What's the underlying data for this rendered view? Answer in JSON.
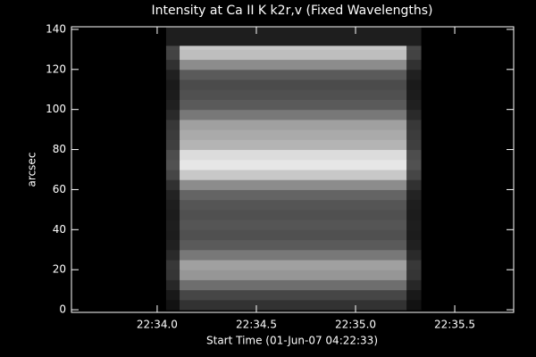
{
  "chart_data": {
    "type": "heatmap",
    "title": "Intensity at Ca II K k2r,v (Fixed Wavelengths)",
    "xlabel": "Start Time (01-Jun-07 04:22:33)",
    "ylabel": "arcsec",
    "xlim": [
      33.568,
      35.797
    ],
    "ylim": [
      -1.3,
      141.3
    ],
    "xticks": [
      {
        "value": 34.0,
        "label": "22:34.0"
      },
      {
        "value": 34.5,
        "label": "22:34.5"
      },
      {
        "value": 35.0,
        "label": "22:35.0"
      },
      {
        "value": 35.5,
        "label": "22:35.5"
      }
    ],
    "yticks": [
      0,
      20,
      40,
      60,
      80,
      100,
      120,
      140
    ],
    "colormap": "gray",
    "x_edges": [
      34.045,
      34.113,
      35.257,
      35.329
    ],
    "y_edges": [
      0,
      5,
      10,
      15,
      20,
      25,
      30,
      35,
      40,
      45,
      50,
      55,
      60,
      65,
      70,
      75,
      80,
      85,
      90,
      95,
      100,
      105,
      110,
      115,
      120,
      125,
      130,
      132,
      141
    ],
    "z": [
      [
        18,
        50,
        18
      ],
      [
        25,
        70,
        25
      ],
      [
        39,
        110,
        39
      ],
      [
        53,
        150,
        53
      ],
      [
        56,
        160,
        56
      ],
      [
        42,
        120,
        42
      ],
      [
        32,
        90,
        32
      ],
      [
        28,
        80,
        28
      ],
      [
        30,
        85,
        30
      ],
      [
        28,
        80,
        28
      ],
      [
        30,
        85,
        30
      ],
      [
        35,
        100,
        35
      ],
      [
        49,
        140,
        49
      ],
      [
        70,
        200,
        70
      ],
      [
        81,
        230,
        81
      ],
      [
        77,
        220,
        77
      ],
      [
        63,
        180,
        63
      ],
      [
        60,
        170,
        60
      ],
      [
        56,
        160,
        56
      ],
      [
        42,
        120,
        42
      ],
      [
        32,
        90,
        32
      ],
      [
        28,
        80,
        28
      ],
      [
        26,
        75,
        26
      ],
      [
        32,
        90,
        32
      ],
      [
        49,
        140,
        49
      ],
      [
        67,
        190,
        67
      ],
      [
        70,
        200,
        70
      ],
      [
        30,
        30,
        30
      ]
    ]
  }
}
